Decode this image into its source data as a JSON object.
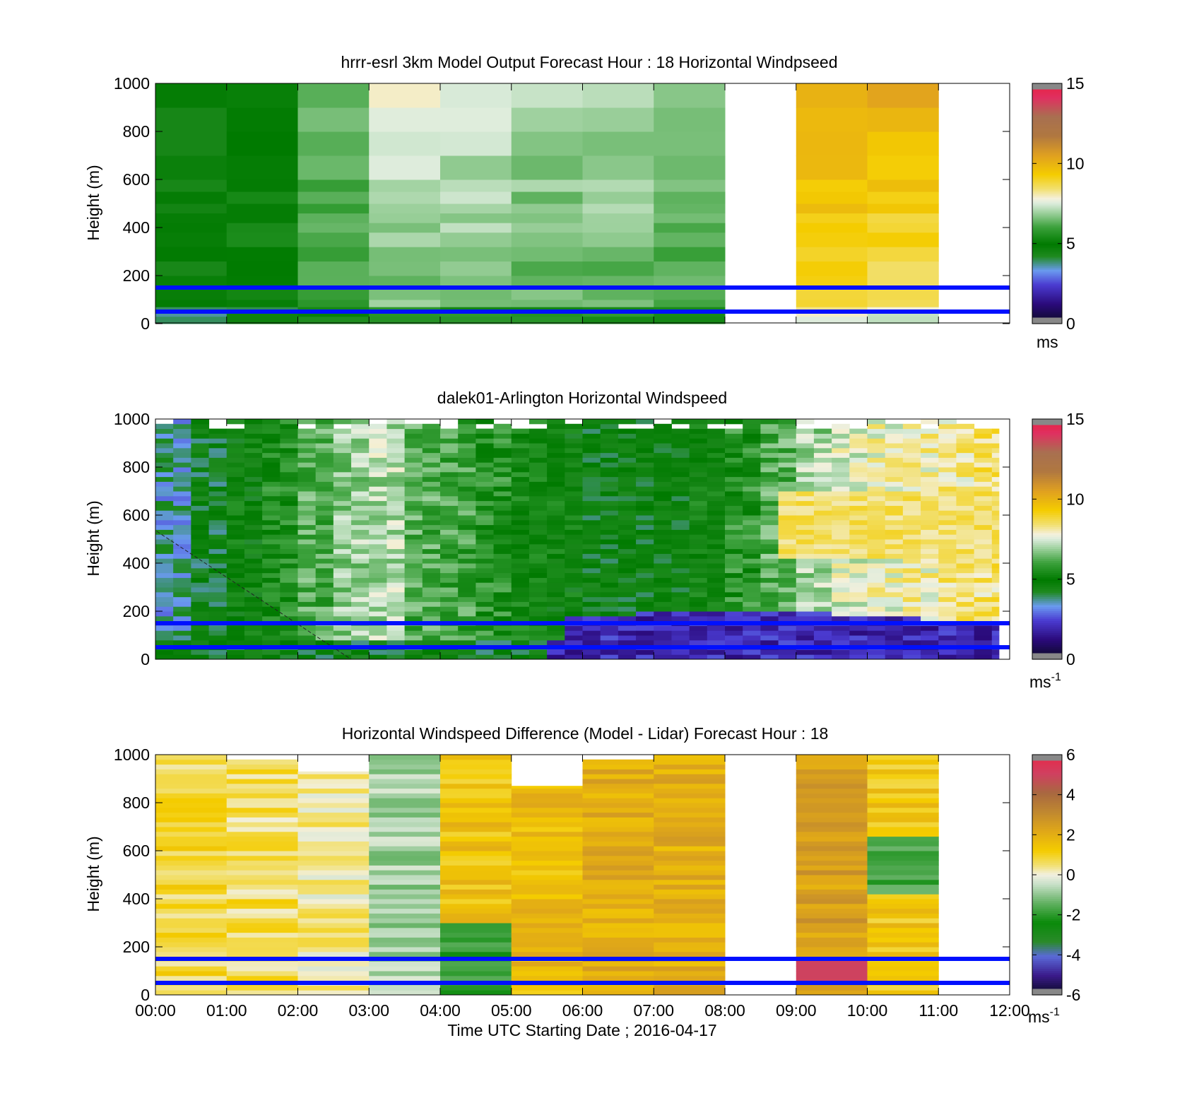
{
  "chart_data": [
    {
      "type": "heatmap",
      "panel": "model",
      "title": "hrrr-esrl 3km Model Output   Forecast Hour : 18 Horizontal Windpseed",
      "ylabel": "Height (m)",
      "xlabel": "",
      "ylim": [
        0,
        1000
      ],
      "yticks": [
        "0",
        "200",
        "400",
        "600",
        "800",
        "1000"
      ],
      "xlim_hours": [
        0,
        12
      ],
      "x_ticks_labeled": false,
      "colorbar": {
        "min": 0,
        "max": 15,
        "ticks": [
          "0",
          "5",
          "10",
          "15"
        ],
        "unit": "ms",
        "sup": ""
      },
      "hlines_m": [
        50,
        150
      ],
      "columns": [
        {
          "x_start_h": 0,
          "x_end_h": 1,
          "top_m": 1000,
          "base_speed": 4.6,
          "trend": 0.0
        },
        {
          "x_start_h": 1,
          "x_end_h": 2,
          "top_m": 1000,
          "base_speed": 5.1,
          "trend": 0.0
        },
        {
          "x_start_h": 2,
          "x_end_h": 3,
          "top_m": 1000,
          "base_speed": 5.9,
          "trend": 0.2
        },
        {
          "x_start_h": 3,
          "x_end_h": 4,
          "top_m": 1000,
          "base_speed": 6.5,
          "trend": 0.4
        },
        {
          "x_start_h": 4,
          "x_end_h": 5,
          "top_m": 1000,
          "base_speed": 6.4,
          "trend": 0.4
        },
        {
          "x_start_h": 5,
          "x_end_h": 6,
          "top_m": 1000,
          "base_speed": 6.2,
          "trend": 0.3
        },
        {
          "x_start_h": 6,
          "x_end_h": 7,
          "top_m": 1000,
          "base_speed": 6.3,
          "trend": 0.3
        },
        {
          "x_start_h": 7,
          "x_end_h": 8,
          "top_m": 1000,
          "base_speed": 6.0,
          "trend": 0.3
        },
        {
          "x_start_h": 9,
          "x_end_h": 10,
          "top_m": 1000,
          "base_speed": 8.6,
          "trend": 0.6
        },
        {
          "x_start_h": 10,
          "x_end_h": 11,
          "top_m": 1000,
          "base_speed": 8.3,
          "trend": 0.6
        }
      ]
    },
    {
      "type": "heatmap",
      "panel": "lidar",
      "title": "dalek01-Arlington  Horizontal Windspeed",
      "ylabel": "Height (m)",
      "xlabel": "",
      "ylim": [
        0,
        1000
      ],
      "yticks": [
        "0",
        "200",
        "400",
        "600",
        "800",
        "1000"
      ],
      "xlim_hours": [
        0,
        12
      ],
      "x_ticks_labeled": false,
      "colorbar": {
        "min": 0,
        "max": 15,
        "ticks": [
          "0",
          "5",
          "10",
          "15"
        ],
        "unit": "ms",
        "sup": "-1"
      },
      "hlines_m": [
        50,
        150
      ],
      "data_end_h": 11.85,
      "columns": [
        {
          "x_h": 0.25,
          "speed": 3.6
        },
        {
          "x_h": 0.75,
          "speed": 4.4
        },
        {
          "x_h": 1.25,
          "speed": 4.9
        },
        {
          "x_h": 1.75,
          "speed": 5.4
        },
        {
          "x_h": 2.25,
          "speed": 6.2
        },
        {
          "x_h": 2.75,
          "speed": 6.9
        },
        {
          "x_h": 3.25,
          "speed": 7.1
        },
        {
          "x_h": 3.75,
          "speed": 6.2
        },
        {
          "x_h": 4.25,
          "speed": 6.0
        },
        {
          "x_h": 4.75,
          "speed": 5.6
        },
        {
          "x_h": 5.25,
          "speed": 5.1
        },
        {
          "x_h": 5.75,
          "speed": 4.9
        },
        {
          "x_h": 6.25,
          "speed": 4.6
        },
        {
          "x_h": 6.75,
          "speed": 4.6
        },
        {
          "x_h": 7.25,
          "speed": 4.7
        },
        {
          "x_h": 7.75,
          "speed": 5.0
        },
        {
          "x_h": 8.25,
          "speed": 5.6
        },
        {
          "x_h": 8.75,
          "speed": 6.2
        },
        {
          "x_h": 9.25,
          "speed": 7.0
        },
        {
          "x_h": 9.75,
          "speed": 7.5
        },
        {
          "x_h": 10.25,
          "speed": 7.8
        },
        {
          "x_h": 10.75,
          "speed": 8.0
        },
        {
          "x_h": 11.25,
          "speed": 8.2
        },
        {
          "x_h": 11.75,
          "speed": 8.4
        }
      ]
    },
    {
      "type": "heatmap",
      "panel": "difference",
      "title": "Horizontal Windspeed Difference (Model - Lidar) Forecast Hour : 18",
      "ylabel": "Height (m)",
      "xlabel": "Time UTC  Starting Date ; 2016-04-17",
      "ylim": [
        0,
        1000
      ],
      "yticks": [
        "0",
        "200",
        "400",
        "600",
        "800",
        "1000"
      ],
      "xlim_hours": [
        0,
        12
      ],
      "xticks": [
        "00:00",
        "01:00",
        "02:00",
        "03:00",
        "04:00",
        "05:00",
        "06:00",
        "07:00",
        "08:00",
        "09:00",
        "10:00",
        "11:00",
        "12:00"
      ],
      "colorbar": {
        "min": -6,
        "max": 6,
        "ticks": [
          "-6",
          "-4",
          "-2",
          "0",
          "2",
          "4",
          "6"
        ],
        "unit": "ms",
        "sup": "-1"
      },
      "hlines_m": [
        50,
        150
      ],
      "columns": [
        {
          "x_start_h": 0,
          "x_end_h": 1,
          "top_m": 1000,
          "mean_diff": 0.8
        },
        {
          "x_start_h": 1,
          "x_end_h": 2,
          "top_m": 980,
          "mean_diff": 0.6
        },
        {
          "x_start_h": 2,
          "x_end_h": 3,
          "top_m": 930,
          "mean_diff": 0.3
        },
        {
          "x_start_h": 3,
          "x_end_h": 4,
          "top_m": 1000,
          "mean_diff": -0.8
        },
        {
          "x_start_h": 4,
          "x_end_h": 5,
          "top_m": 1000,
          "mean_diff": 1.4
        },
        {
          "x_start_h": 5,
          "x_end_h": 6,
          "top_m": 870,
          "mean_diff": 1.6
        },
        {
          "x_start_h": 6,
          "x_end_h": 7,
          "top_m": 980,
          "mean_diff": 2.0
        },
        {
          "x_start_h": 7,
          "x_end_h": 8,
          "top_m": 1000,
          "mean_diff": 2.0
        },
        {
          "x_start_h": 9,
          "x_end_h": 10,
          "top_m": 1000,
          "mean_diff": 2.4
        },
        {
          "x_start_h": 10,
          "x_end_h": 11,
          "top_m": 1000,
          "mean_diff": 1.3
        }
      ]
    }
  ]
}
